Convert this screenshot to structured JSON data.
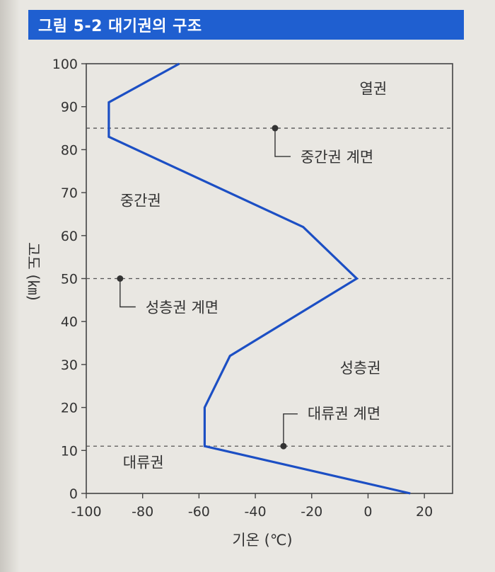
{
  "figure_title": "그림 5-2 대기권의 구조",
  "chart_data": {
    "type": "line",
    "title": "그림 5-2 대기권의 구조",
    "xlabel": "기온 (℃)",
    "ylabel": "고도 (㎞)",
    "xlim": [
      -100,
      30
    ],
    "ylim": [
      0,
      100
    ],
    "x_ticks": [
      -100,
      -80,
      -60,
      -40,
      -20,
      0,
      20
    ],
    "y_ticks": [
      0,
      10,
      20,
      30,
      40,
      50,
      60,
      70,
      80,
      90,
      100
    ],
    "grid": false,
    "series": [
      {
        "color": "#1c4fc4",
        "points": [
          {
            "x": 15,
            "y": 0
          },
          {
            "x": -58,
            "y": 11
          },
          {
            "x": -58,
            "y": 20
          },
          {
            "x": -49,
            "y": 32
          },
          {
            "x": -4,
            "y": 50
          },
          {
            "x": -23,
            "y": 62
          },
          {
            "x": -92,
            "y": 83
          },
          {
            "x": -92,
            "y": 91
          },
          {
            "x": -67,
            "y": 100
          }
        ]
      }
    ],
    "boundaries": [
      {
        "y": 11,
        "label": "대류권 계면"
      },
      {
        "y": 50,
        "label": "성층권 계면"
      },
      {
        "y": 85,
        "label": "중간권 계면"
      }
    ],
    "layers": [
      "대류권",
      "성층권",
      "중간권",
      "열권"
    ]
  }
}
